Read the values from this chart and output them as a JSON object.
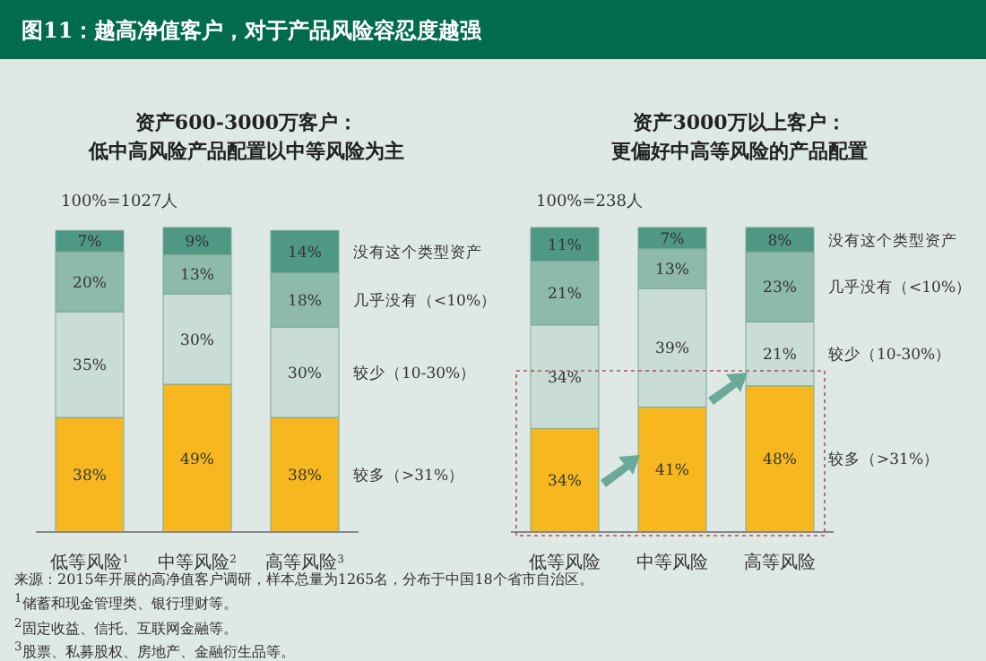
{
  "chart_data": [
    {
      "type": "bar",
      "title": "图11：越高净值客户，对于产品风险容忍度越强",
      "subtitle": "资产600-3000万客户：低中高风险产品配置以中等风险为主",
      "categories": [
        "低等风险$^{1}$",
        "中等风险$^{2}$",
        "高等风险$^{3}$"
      ],
      "stacked": true,
      "series": [
        {
          "name": "较多（>31%）",
          "color": "#f6b81e",
          "values": [
            38,
            49,
            38
          ],
          "value_labels": [
            "38%",
            "49%",
            "38%"
          ]
        },
        {
          "name": "较少（10-30%）",
          "color": "#c9dcd5",
          "values": [
            35,
            30,
            30
          ],
          "value_labels": [
            "35%",
            "30%",
            "30%"
          ]
        },
        {
          "name": "几乎没有（<10%）",
          "color": "#8dbaab",
          "values": [
            20,
            13,
            18
          ],
          "value_labels": [
            "20%",
            "13%",
            "18%"
          ]
        },
        {
          "name": "没有这个类型资产",
          "color": "#4f9883",
          "values": [
            7,
            9,
            14
          ],
          "value_labels": [
            "7%",
            "9%",
            "14%"
          ]
        }
      ],
      "annotations": [
        "100%=1027人",
        "来源：2015年开展的高净值客户调研，样本总量为1265名，分布于中国18个省市自治区。",
        "$^{1}$储蓄和现金管理类、银行理财等。",
        "$^{2}$固定收益、信托、互联网金融等。",
        "$^{3}$股票、私募股权、房地产、金融衍生品等。"
      ]
    },
    {
      "type": "bar",
      "subtitle": "资产3000万以上客户：更偏好中高等风险的产品配置",
      "categories": [
        "低等风险",
        "中等风险",
        "高等风险"
      ],
      "stacked": true,
      "series": [
        {
          "name": "较多（>31%）",
          "color": "#f6b81e",
          "values": [
            34,
            41,
            48
          ],
          "value_labels": [
            "34%",
            "41%",
            "48%"
          ]
        },
        {
          "name": "较少（10-30%）",
          "color": "#c9dcd5",
          "values": [
            34,
            39,
            21
          ],
          "value_labels": [
            "34%",
            "39%",
            "21%"
          ]
        },
        {
          "name": "几乎没有（<10%）",
          "color": "#8dbaab",
          "values": [
            21,
            13,
            23
          ],
          "value_labels": [
            "21%",
            "13%",
            "23%"
          ]
        },
        {
          "name": "没有这个类型资产",
          "color": "#4f9883",
          "values": [
            11,
            7,
            8
          ],
          "value_labels": [
            "11%",
            "7%",
            "8%"
          ]
        }
      ],
      "annotations": [
        "100%=238人"
      ]
    }
  ]
}
